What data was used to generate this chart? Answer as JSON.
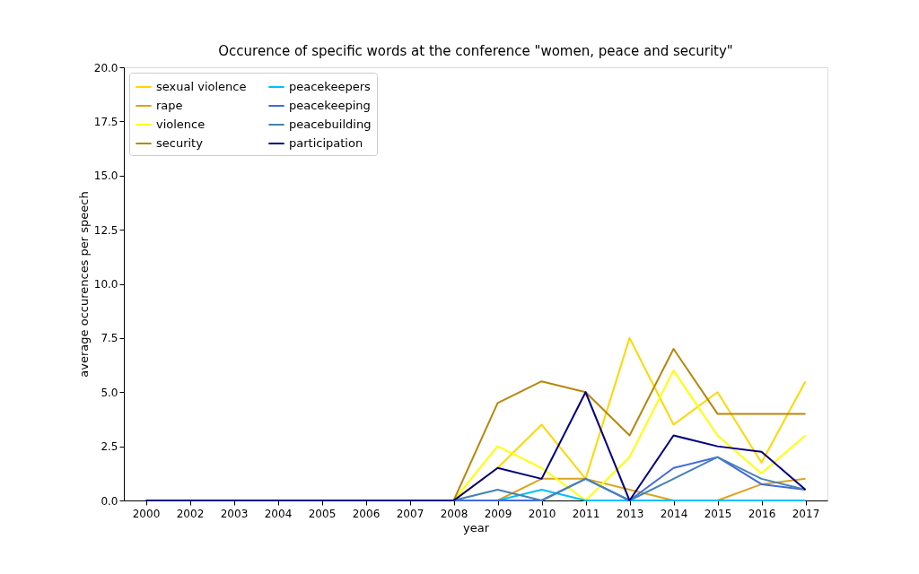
{
  "chart_data": {
    "type": "line",
    "title": "Occurence of specific words at the conference \"women, peace and security\"",
    "xlabel": "year",
    "ylabel": "average occurences per speech",
    "categories": [
      "2000",
      "2002",
      "2003",
      "2004",
      "2005",
      "2006",
      "2007",
      "2008",
      "2009",
      "2010",
      "2011",
      "2013",
      "2014",
      "2015",
      "2016",
      "2017"
    ],
    "series": [
      {
        "name": "sexual violence",
        "color": "#ffd700",
        "values": [
          null,
          null,
          null,
          null,
          null,
          null,
          0,
          0,
          1.5,
          3.5,
          1.0,
          7.5,
          3.5,
          5.0,
          1.75,
          5.5
        ]
      },
      {
        "name": "rape",
        "color": "#daa520",
        "values": [
          null,
          null,
          null,
          null,
          null,
          null,
          0,
          0,
          0,
          1.0,
          1.0,
          0.5,
          0,
          0,
          0.75,
          1.0
        ]
      },
      {
        "name": "violence",
        "color": "#ffff00",
        "values": [
          null,
          null,
          null,
          null,
          null,
          null,
          0,
          0,
          2.5,
          1.5,
          0,
          2.0,
          6.0,
          3.0,
          1.25,
          3.0
        ]
      },
      {
        "name": "security",
        "color": "#b8860b",
        "values": [
          null,
          null,
          null,
          null,
          null,
          null,
          0,
          0,
          4.5,
          5.5,
          5.0,
          3.0,
          7.0,
          4.0,
          4.0,
          4.0
        ]
      },
      {
        "name": "peacekeepers",
        "color": "#00bfff",
        "values": [
          null,
          null,
          null,
          null,
          null,
          null,
          0,
          0,
          0,
          0.5,
          0,
          0,
          0,
          0,
          0,
          0
        ]
      },
      {
        "name": "peacekeeping",
        "color": "#4169e1",
        "values": [
          null,
          null,
          null,
          null,
          null,
          null,
          0,
          0,
          0,
          0,
          1.0,
          0,
          1.5,
          2.0,
          0.75,
          0.5
        ]
      },
      {
        "name": "peacebuilding",
        "color": "#4682b4",
        "values": [
          null,
          null,
          null,
          null,
          null,
          null,
          0,
          0,
          0.5,
          0,
          1.0,
          0,
          1.0,
          2.0,
          1.0,
          0.5
        ]
      },
      {
        "name": "participation",
        "color": "#000080",
        "values": [
          0,
          0,
          0,
          0,
          0,
          0,
          0,
          0,
          1.5,
          1.0,
          5.0,
          0,
          3.0,
          2.5,
          2.25,
          0.5
        ]
      }
    ],
    "ylim": [
      0,
      20
    ],
    "yticks": [
      {
        "value": 0,
        "label": "0.0"
      },
      {
        "value": 2.5,
        "label": "2.5"
      },
      {
        "value": 5,
        "label": "5.0"
      },
      {
        "value": 7.5,
        "label": "7.5"
      },
      {
        "value": 10,
        "label": "10.0"
      },
      {
        "value": 12.5,
        "label": "12.5"
      },
      {
        "value": 15,
        "label": "15.0"
      },
      {
        "value": 17.5,
        "label": "17.5"
      },
      {
        "value": 20,
        "label": "20.0"
      }
    ],
    "grid": false,
    "legend": "top left",
    "marker": "none",
    "line_style": "solid"
  }
}
